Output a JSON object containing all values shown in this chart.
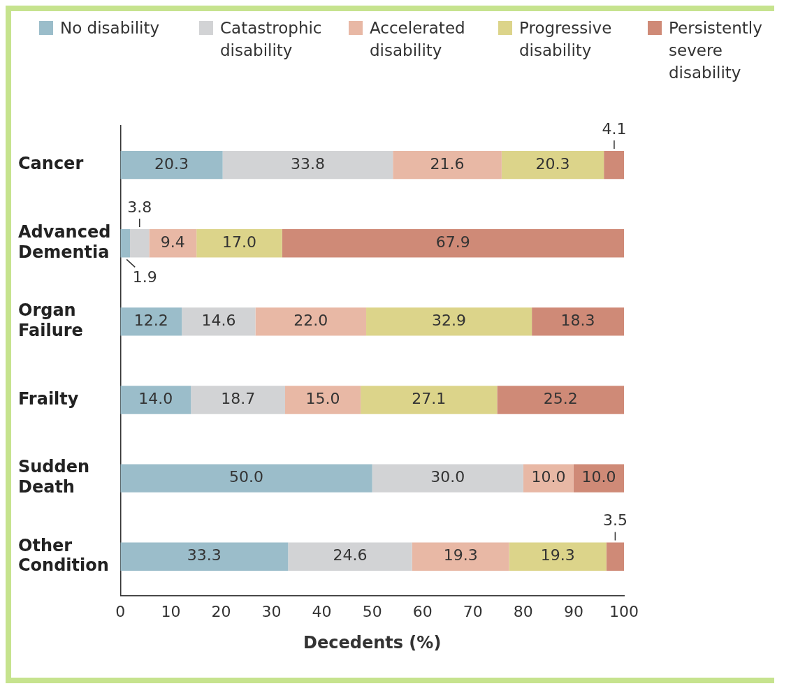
{
  "chart_data": {
    "type": "bar",
    "orientation": "horizontal",
    "stacked": true,
    "xlabel": "Decedents (%)",
    "categories": [
      "Cancer",
      "Advanced Dementia",
      "Organ Failure",
      "Frailty",
      "Sudden Death",
      "Other Condition"
    ],
    "series": [
      {
        "name": "No disability",
        "color": "#9bbdca",
        "values": [
          20.3,
          1.9,
          12.2,
          14.0,
          50.0,
          33.3
        ],
        "value_labels": [
          "20.3",
          "1.9",
          "12.2",
          "14.0",
          "50.0",
          "33.3"
        ]
      },
      {
        "name": "Catastrophic disability",
        "color": "#d2d3d5",
        "values": [
          33.8,
          3.8,
          14.6,
          18.7,
          30.0,
          24.6
        ],
        "value_labels": [
          "33.8",
          "3.8",
          "14.6",
          "18.7",
          "30.0",
          "24.6"
        ]
      },
      {
        "name": "Accelerated disability",
        "color": "#e8b8a5",
        "values": [
          21.6,
          9.4,
          22.0,
          15.0,
          10.0,
          19.3
        ],
        "value_labels": [
          "21.6",
          "9.4",
          "22.0",
          "15.0",
          "10.0",
          "19.3"
        ]
      },
      {
        "name": "Progressive disability",
        "color": "#dcd48a",
        "values": [
          20.3,
          17.0,
          32.9,
          27.1,
          null,
          19.3
        ],
        "value_labels": [
          "20.3",
          "17.0",
          "32.9",
          "27.1",
          null,
          "19.3"
        ]
      },
      {
        "name": "Persistently severe disability",
        "color": "#cf8a77",
        "values": [
          4.1,
          67.9,
          18.3,
          25.2,
          10.0,
          3.5
        ],
        "value_labels": [
          "4.1",
          "67.9",
          "18.3",
          "25.2",
          "10.0",
          "3.5"
        ]
      }
    ],
    "xlim": [
      0,
      100
    ],
    "xticks": [
      0,
      10,
      20,
      30,
      40,
      50,
      60,
      70,
      80,
      90,
      100
    ],
    "grid": false,
    "legend": "top"
  }
}
